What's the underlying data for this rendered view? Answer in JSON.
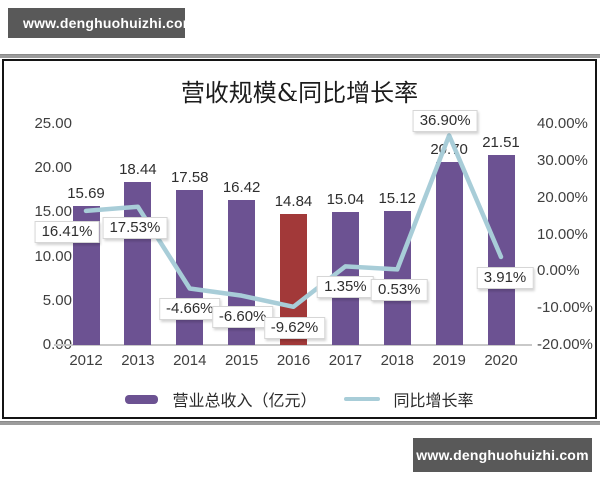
{
  "watermark": {
    "text": "www.denghuohuizhi.com"
  },
  "chart_data": {
    "type": "bar",
    "title": "营收规模&同比增长率",
    "categories": [
      "2012",
      "2013",
      "2014",
      "2015",
      "2016",
      "2017",
      "2018",
      "2019",
      "2020"
    ],
    "series": [
      {
        "name": "营业总收入（亿元）",
        "type": "bar",
        "axis": "left",
        "color": "#6c5292",
        "highlight_index": 4,
        "highlight_color": "#a23939",
        "values": [
          15.69,
          18.44,
          17.58,
          16.42,
          14.84,
          15.04,
          15.12,
          20.7,
          21.51
        ],
        "labels": [
          "15.69",
          "18.44",
          "17.58",
          "16.42",
          "14.84",
          "15.04",
          "15.12",
          "20.70",
          "21.51"
        ]
      },
      {
        "name": "同比增长率",
        "type": "line",
        "axis": "right",
        "color": "#a8cdd8",
        "values": [
          16.41,
          17.53,
          -4.66,
          -6.6,
          -9.62,
          1.35,
          0.53,
          36.9,
          3.91
        ],
        "labels": [
          "16.41%",
          "17.53%",
          "-4.66%",
          "-6.60%",
          "-9.62%",
          "1.35%",
          "0.53%",
          "36.90%",
          "3.91%"
        ],
        "label_side": [
          "below",
          "below",
          "below",
          "below",
          "below",
          "below",
          "below",
          "above",
          "below"
        ],
        "label_dx": [
          -19,
          -3,
          0,
          1,
          1,
          0,
          2,
          -4,
          4
        ]
      }
    ],
    "left_axis": {
      "min": 0,
      "max": 25,
      "ticks": [
        "25.00",
        "20.00",
        "15.00",
        "10.00",
        "5.00",
        "0.00"
      ]
    },
    "right_axis": {
      "min": -20,
      "max": 40,
      "ticks": [
        "40.00%",
        "30.00%",
        "20.00%",
        "10.00%",
        "0.00%",
        "-10.00%",
        "-20.00%"
      ]
    },
    "legend_position": "bottom",
    "grid": false
  }
}
